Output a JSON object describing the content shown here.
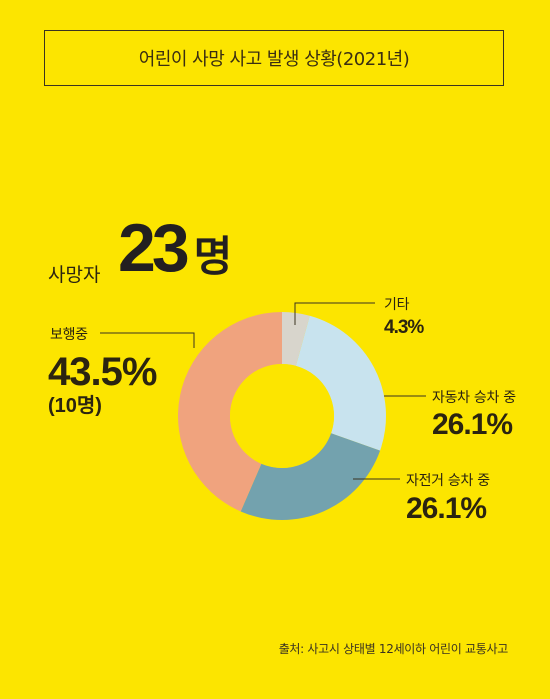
{
  "title": "어린이 사망 사고 발생 상황(2021년)",
  "total": {
    "label": "사망자",
    "value": "23",
    "unit": "명"
  },
  "chart_data": {
    "type": "pie",
    "title": "어린이 사망 사고 발생 상황(2021년)",
    "total_label": "사망자 23명",
    "slices": [
      {
        "label": "기타",
        "value": 4.3,
        "display": "4.3%",
        "color": "#D8D5CC"
      },
      {
        "label": "자동차 승차 중",
        "value": 26.1,
        "display": "26.1%",
        "color": "#C8E3EE"
      },
      {
        "label": "자전거 승차 중",
        "value": 26.1,
        "display": "26.1%",
        "color": "#73A2AE"
      },
      {
        "label": "보행중",
        "value": 43.5,
        "display": "43.5%",
        "sub": "(10명)",
        "color": "#F0A37E"
      }
    ]
  },
  "source": "출처: 사고시 상태별 12세이하 어린이 교통사고"
}
